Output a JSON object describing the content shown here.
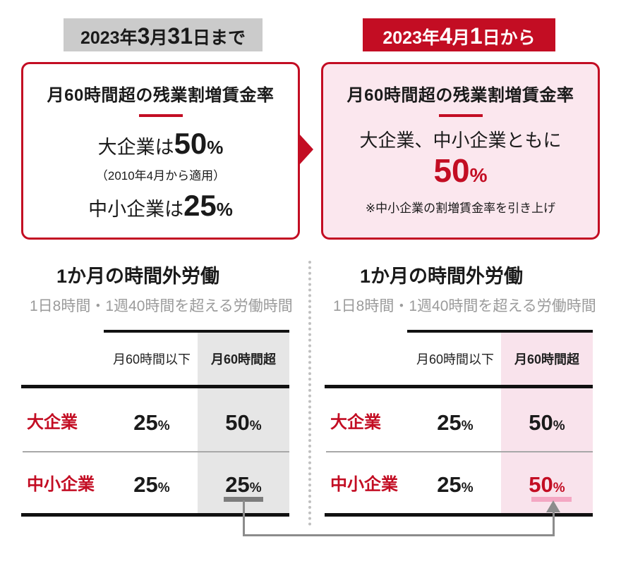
{
  "colors": {
    "accent_red": "#c30d23",
    "pink_bg": "#fbe7ee",
    "label_gray_bg": "#cbcbcb",
    "highlight_gray": "#e6e6e6",
    "highlight_pink": "#f9e3ec",
    "underline_gray": "#7d7d7d",
    "underline_pink": "#f4a7c3",
    "connector_gray": "#8c8c8c",
    "subtitle_gray": "#9b9b9b",
    "divider_dot_gray": "#c0c0c0",
    "row_divider_gray": "#a8a8a8"
  },
  "period_before": {
    "parts": [
      "2023年",
      "3",
      "月",
      "31",
      "日まで"
    ]
  },
  "period_after": {
    "parts": [
      "2023年",
      "4",
      "月",
      "1",
      "日から"
    ]
  },
  "before_box": {
    "heading": "月60時間超の残業割増賃金率",
    "line1": {
      "prefix": "大企業は",
      "value": "50",
      "unit": "%"
    },
    "note": "（2010年4月から適用）",
    "line2": {
      "prefix": "中小企業は",
      "value": "25",
      "unit": "%"
    }
  },
  "after_box": {
    "heading": "月60時間超の残業割増賃金率",
    "line1": "大企業、中小企業ともに",
    "value": "50",
    "unit": "%",
    "note": "※中小企業の割増賃金率を引き上げ"
  },
  "tables": {
    "title": "1か月の時間外労働",
    "subtitle": "1日8時間・1週40時間を超える労働時間",
    "col_headers": [
      "月60時間以下",
      "月60時間超"
    ],
    "percent": "%",
    "before": {
      "rows": [
        {
          "label": "大企業",
          "under60": "25",
          "over60": "50"
        },
        {
          "label": "中小企業",
          "under60": "25",
          "over60": "25"
        }
      ]
    },
    "after": {
      "rows": [
        {
          "label": "大企業",
          "under60": "25",
          "over60": "50"
        },
        {
          "label": "中小企業",
          "under60": "25",
          "over60": "50"
        }
      ]
    }
  }
}
